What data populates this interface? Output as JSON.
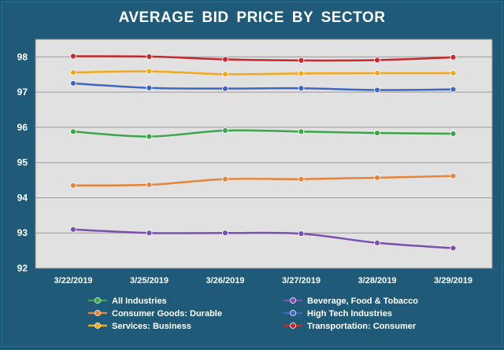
{
  "chart_data": {
    "type": "line",
    "title": "AVERAGE BID PRICE BY SECTOR",
    "xlabel": "",
    "ylabel": "",
    "x": [
      "3/22/2019",
      "3/25/2019",
      "3/26/2019",
      "3/27/2019",
      "3/28/2019",
      "3/29/2019"
    ],
    "ylim": [
      92,
      98.5
    ],
    "yticks": [
      92,
      93,
      94,
      95,
      96,
      97,
      98
    ],
    "grid": true,
    "legend_position": "bottom",
    "series": [
      {
        "name": "All Industries",
        "color": "#3aa64a",
        "values": [
          95.88,
          95.74,
          95.91,
          95.88,
          95.84,
          95.82
        ]
      },
      {
        "name": "Beverage, Food & Tobacco",
        "color": "#7b4fb0",
        "values": [
          93.1,
          93.0,
          93.0,
          92.98,
          92.72,
          92.57
        ]
      },
      {
        "name": "Consumer Goods: Durable",
        "color": "#e8833a",
        "values": [
          94.35,
          94.37,
          94.53,
          94.53,
          94.57,
          94.62
        ]
      },
      {
        "name": "High Tech Industries",
        "color": "#3f67c2",
        "values": [
          97.25,
          97.12,
          97.1,
          97.11,
          97.06,
          97.08
        ]
      },
      {
        "name": "Services: Business",
        "color": "#f2a818",
        "values": [
          97.56,
          97.59,
          97.51,
          97.53,
          97.54,
          97.54
        ]
      },
      {
        "name": "Transportation: Consumer",
        "color": "#c5282d",
        "values": [
          98.02,
          98.01,
          97.93,
          97.9,
          97.91,
          97.99
        ]
      }
    ]
  }
}
